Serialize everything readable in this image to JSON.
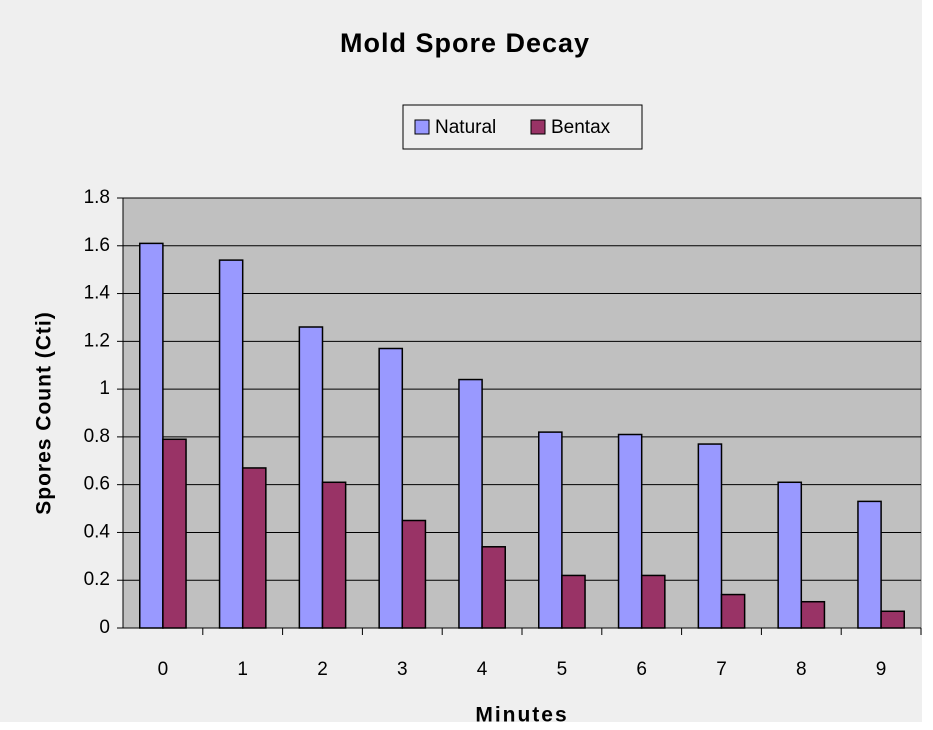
{
  "chart_data": {
    "type": "bar",
    "title": "Mold Spore Decay",
    "x_label": "Minutes",
    "y_label": "Spores Count (Cti)",
    "categories": [
      "0",
      "1",
      "2",
      "3",
      "4",
      "5",
      "6",
      "7",
      "8",
      "9"
    ],
    "series": [
      {
        "name": "Natural",
        "color": "#9999ff",
        "values": [
          1.61,
          1.54,
          1.26,
          1.17,
          1.04,
          0.82,
          0.81,
          0.77,
          0.61,
          0.53
        ]
      },
      {
        "name": "Bentax",
        "color": "#993366",
        "values": [
          0.79,
          0.67,
          0.61,
          0.45,
          0.34,
          0.22,
          0.22,
          0.14,
          0.11,
          0.07
        ]
      }
    ],
    "ylim": [
      0,
      1.8
    ],
    "yticks": [
      0,
      0.2,
      0.4,
      0.6,
      0.8,
      1,
      1.2,
      1.4,
      1.6,
      1.8
    ],
    "grid": true,
    "legend": "top"
  }
}
